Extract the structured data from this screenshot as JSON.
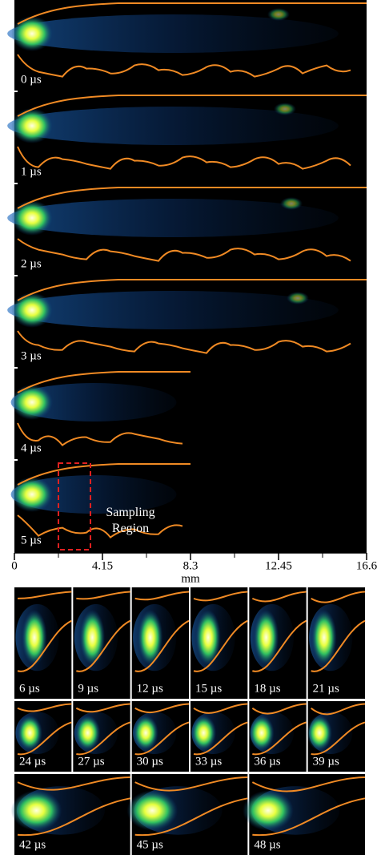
{
  "top_panel": {
    "frames": [
      "0 µs",
      "1 µs",
      "2 µs",
      "3 µs",
      "4 µs",
      "5 µs"
    ],
    "annotation": "Sampling Region",
    "x_axis": {
      "label": "mm",
      "lim": [
        0,
        16.6
      ],
      "ticks": [
        0,
        4.15,
        8.3,
        12.45,
        16.6
      ],
      "minor_ticks": [
        2.075,
        6.225,
        10.375,
        14.525
      ]
    }
  },
  "bottom_panel": {
    "rows": [
      [
        "6 µs",
        "9 µs",
        "12 µs",
        "15 µs",
        "18 µs",
        "21 µs"
      ],
      [
        "24 µs",
        "27 µs",
        "30 µs",
        "33 µs",
        "36 µs",
        "39 µs"
      ],
      [
        "42 µs",
        "45 µs",
        "48 µs"
      ]
    ]
  }
}
